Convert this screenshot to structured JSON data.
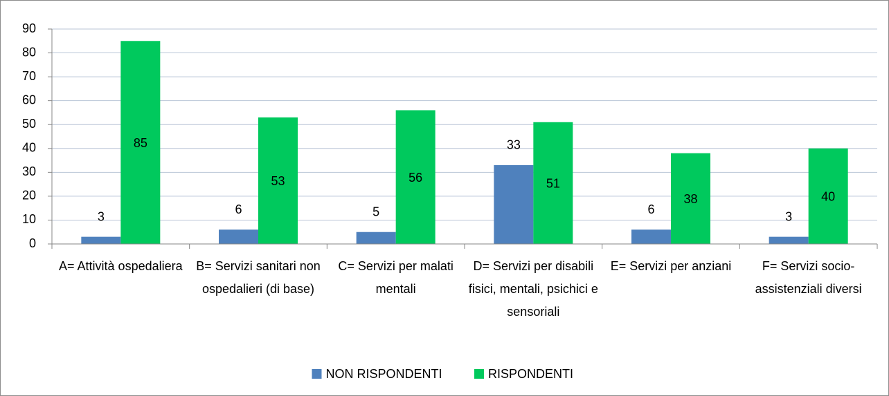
{
  "chart_data": {
    "type": "bar",
    "categories": [
      "A= Attività ospedaliera",
      "B= Servizi sanitari non ospedalieri (di base)",
      "C= Servizi per malati mentali",
      "D= Servizi per disabili fisici, mentali, psichici e sensoriali",
      "E= Servizi per anziani",
      "F= Servizi socio-assistenziali diversi"
    ],
    "series": [
      {
        "name": "NON RISPONDENTI",
        "color": "#4f81bd",
        "values": [
          3,
          6,
          5,
          33,
          6,
          3
        ]
      },
      {
        "name": "RISPONDENTI",
        "color": "#00c95d",
        "values": [
          85,
          53,
          56,
          51,
          38,
          40
        ]
      }
    ],
    "ylim": [
      0,
      90
    ],
    "yticks": [
      0,
      10,
      20,
      30,
      40,
      50,
      60,
      70,
      80,
      90
    ],
    "grid": true,
    "legend": "bottom"
  }
}
